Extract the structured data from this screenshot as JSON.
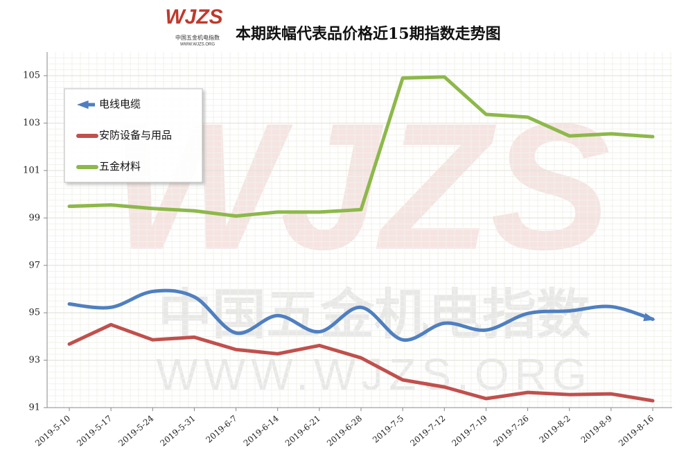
{
  "chart_data": {
    "type": "line",
    "title": "本期跌幅代表品价格近15期指数走势图",
    "logo": {
      "mark": "WJZS",
      "name": "中国五金机电指数",
      "url": "WWW.WJZS.ORG"
    },
    "categories": [
      "2019-5-10",
      "2019-5-17",
      "2019-5-24",
      "2019-5-31",
      "2019-6-7",
      "2019-6-14",
      "2019-6-21",
      "2019-6-28",
      "2019-7-5",
      "2019-7-12",
      "2019-7-19",
      "2019-7-26",
      "2019-8-2",
      "2019-8-9",
      "2019-8-16"
    ],
    "series": [
      {
        "name": "电线电缆",
        "color": "#4f7fc0",
        "smooth": true,
        "arrow": true,
        "values": [
          95.37,
          95.23,
          95.9,
          95.67,
          94.15,
          94.88,
          94.2,
          95.23,
          93.86,
          94.56,
          94.27,
          94.97,
          95.08,
          95.26,
          94.73
        ]
      },
      {
        "name": "安防设备与用品",
        "color": "#c0504d",
        "smooth": false,
        "arrow": false,
        "values": [
          93.68,
          94.5,
          93.86,
          93.97,
          93.45,
          93.27,
          93.62,
          93.1,
          92.17,
          91.87,
          91.38,
          91.64,
          91.55,
          91.58,
          91.29
        ]
      },
      {
        "name": "五金材料",
        "color": "#8db84a",
        "smooth": false,
        "arrow": false,
        "values": [
          99.49,
          99.55,
          99.4,
          99.3,
          99.08,
          99.25,
          99.25,
          99.35,
          104.9,
          104.95,
          103.37,
          103.25,
          102.46,
          102.55,
          102.43
        ]
      }
    ],
    "ylim": [
      91,
      106
    ],
    "yticks": [
      91,
      93,
      95,
      97,
      99,
      101,
      103,
      105
    ],
    "grid": true,
    "legend": "upper left"
  }
}
